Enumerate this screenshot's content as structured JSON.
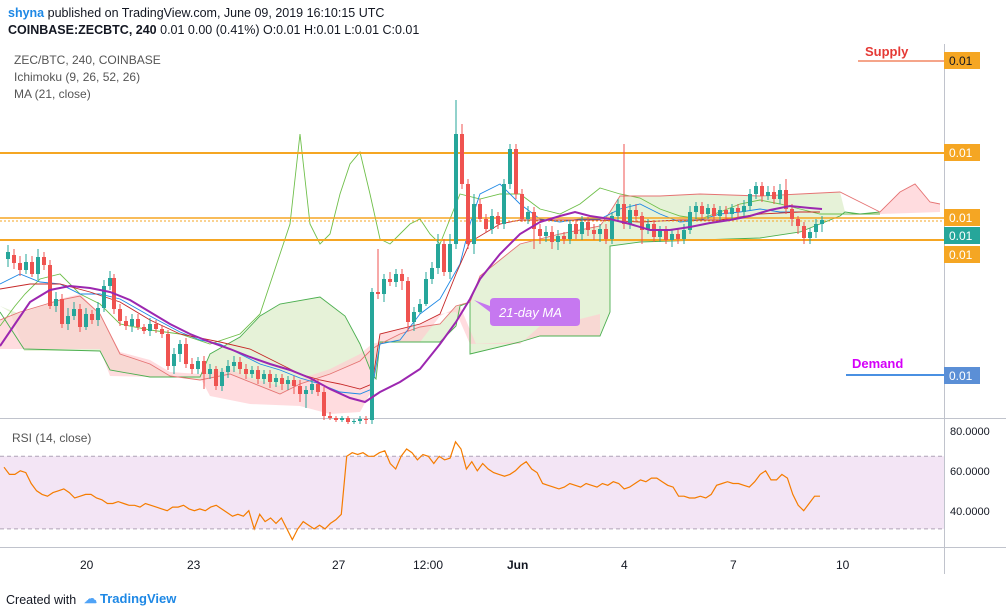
{
  "header": {
    "user": "shyna",
    "published_text": "published on TradingView.com, June 09, 2019 16:10:15 UTC",
    "symbol_line": "COINBASE:ZECBTC, 240",
    "ohlc_line": "0.01 0.00 (0.41%) O:0.01 H:0.01 L:0.01 C:0.01"
  },
  "legend": {
    "pair": "ZEC/BTC, 240, COINBASE",
    "ichimoku": "Ichimoku (9, 26, 52, 26)",
    "ma": "MA (21, close)",
    "rsi": "RSI (14, close)"
  },
  "annotations": {
    "supply": "Supply",
    "demand": "Demand",
    "ma_callout": "21-day MA"
  },
  "price_axis": {
    "labels": [
      "0.01",
      "0.01",
      "0.01",
      "0.01",
      "0.01",
      "0.01"
    ]
  },
  "rsi_axis": {
    "labels": [
      "80.0000",
      "60.0000",
      "40.0000"
    ]
  },
  "time_axis": {
    "labels": [
      "20",
      "23",
      "27",
      "12:00",
      "Jun",
      "4",
      "7",
      "10"
    ]
  },
  "footer": {
    "created_with": "Created with",
    "brand": "TradingView"
  },
  "colors": {
    "up": "#26a69a",
    "down": "#ef5350",
    "ma": "#9c27b0",
    "level": "#f5a623",
    "supply": "#e53935",
    "demand": "#d500f9",
    "rsi_line": "#f57c00",
    "rsi_band": "#f3e5f5",
    "cloud_green": "#dcedc8",
    "cloud_red": "#ffcdd2"
  },
  "chart_data": {
    "type": "candlestick",
    "rsi": {
      "upper": 70,
      "lower": 30,
      "values": [
        64,
        60,
        60,
        62,
        61,
        55,
        51,
        49,
        48,
        50,
        51,
        52,
        50,
        47,
        48,
        49,
        49,
        47,
        46,
        44,
        44,
        45,
        44,
        43,
        43,
        42,
        44,
        43,
        42,
        41,
        40,
        42,
        42,
        43,
        41,
        40,
        41,
        40,
        42,
        43,
        41,
        39,
        37,
        38,
        37,
        40,
        30,
        38,
        34,
        36,
        33,
        36,
        30,
        24,
        30,
        34,
        32,
        30,
        32,
        30,
        33,
        35,
        38,
        70,
        72,
        71,
        72,
        70,
        70,
        72,
        73,
        66,
        63,
        70,
        74,
        72,
        68,
        71,
        70,
        66,
        70,
        68,
        69,
        78,
        74,
        63,
        67,
        62,
        66,
        63,
        61,
        60,
        59,
        60,
        62,
        65,
        67,
        63,
        61,
        55,
        54,
        53,
        52,
        53,
        55,
        54,
        53,
        55,
        54,
        53,
        55,
        54,
        56,
        55,
        52,
        53,
        55,
        57,
        56,
        58,
        58,
        56,
        54,
        53,
        48,
        48,
        47,
        47,
        48,
        47,
        49,
        54,
        55,
        56,
        55,
        55,
        54,
        53,
        56,
        60,
        62,
        57,
        57,
        60,
        58,
        49,
        43,
        40,
        44,
        48,
        48
      ]
    }
  }
}
